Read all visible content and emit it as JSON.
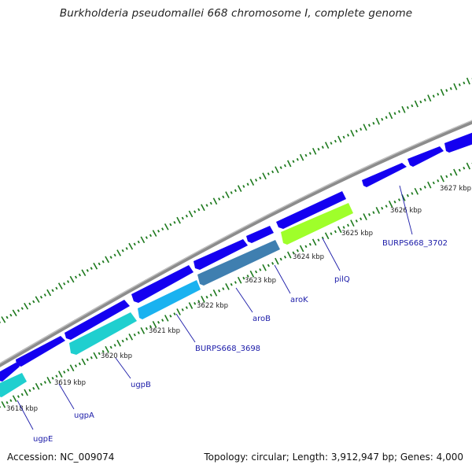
{
  "map": {
    "title": "Burkholderia pseudomallei 668 chromosome I, complete genome",
    "accession": "Accession: NC_009074",
    "summary": "Topology: circular; Length: 3,912,947 bp; Genes: 4,000"
  },
  "colors": {
    "backbone": "#8c8c8c",
    "tick": "#1e7a1e",
    "forward_gene": "#1400f0",
    "label_blue": "#1a1aa8",
    "ugp_cyan": "#1fcfcf",
    "burps3698_lightblue": "#1ab2f0",
    "aro_steelblue": "#3f7fb0",
    "pilQ_green": "#9fff2a"
  },
  "ticks": [
    {
      "label": "3618 kbp"
    },
    {
      "label": "3619 kbp"
    },
    {
      "label": "3620 kbp"
    },
    {
      "label": "3621 kbp"
    },
    {
      "label": "3622 kbp"
    },
    {
      "label": "3623 kbp"
    },
    {
      "label": "3624 kbp"
    },
    {
      "label": "3625 kbp"
    },
    {
      "label": "3626 kbp"
    },
    {
      "label": "3627 kbp"
    }
  ],
  "genes": [
    {
      "name": "ugpE"
    },
    {
      "name": "ugpA"
    },
    {
      "name": "ugpB"
    },
    {
      "name": "BURPS668_3698"
    },
    {
      "name": "aroB"
    },
    {
      "name": "aroK"
    },
    {
      "name": "pilQ"
    },
    {
      "name": "BURPS668_3702"
    }
  ]
}
